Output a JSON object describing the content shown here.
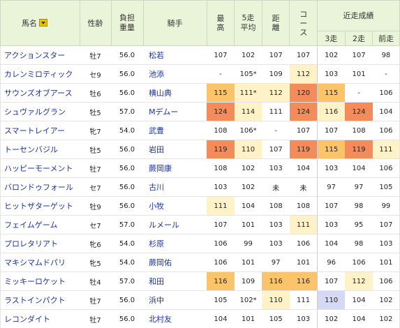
{
  "headers": {
    "name": "馬名",
    "age": "性齢",
    "weight": "負担重量",
    "jockey": "騎手",
    "best": "最高",
    "avg5": "5走平均",
    "dist": "距離",
    "course": "コース",
    "recent": "近走成績",
    "r3": "3走",
    "r2": "2走",
    "r1": "前走"
  },
  "colors": {
    "header_bg": "#eaf4d9",
    "link": "#1a3399",
    "high_light": "#fff2c6",
    "high_mid": "#fbc46b",
    "high_top": "#f38c5a",
    "blue": "#d6d9f5"
  },
  "rows": [
    {
      "name": "アクションスター",
      "age": "牡7",
      "weight": "56.0",
      "jockey": "松若",
      "best": "107",
      "avg5": "102",
      "dist": "107",
      "course": "107",
      "r3": "102",
      "r2": "107",
      "r1": "98"
    },
    {
      "name": "カレンミロティック",
      "age": "セ9",
      "weight": "56.0",
      "jockey": "池添",
      "best": "-",
      "avg5": "105*",
      "dist": "109",
      "course": "112",
      "r3": "103",
      "r2": "101",
      "r1": "-"
    },
    {
      "name": "サウンズオブアース",
      "age": "牡6",
      "weight": "56.0",
      "jockey": "横山典",
      "best": "115",
      "avg5": "111*",
      "dist": "112",
      "course": "120",
      "r3": "115",
      "r2": "-",
      "r1": "106"
    },
    {
      "name": "シュヴァルグラン",
      "age": "牡5",
      "weight": "57.0",
      "jockey": "Mデムー",
      "best": "124",
      "avg5": "114",
      "dist": "111",
      "course": "124",
      "r3": "116",
      "r2": "124",
      "r1": "104"
    },
    {
      "name": "スマートレイアー",
      "age": "牝7",
      "weight": "54.0",
      "jockey": "武豊",
      "best": "108",
      "avg5": "106*",
      "dist": "-",
      "course": "107",
      "r3": "107",
      "r2": "108",
      "r1": "106"
    },
    {
      "name": "トーセンバジル",
      "age": "牡5",
      "weight": "56.0",
      "jockey": "岩田",
      "best": "119",
      "avg5": "110",
      "dist": "107",
      "course": "119",
      "r3": "115",
      "r2": "119",
      "r1": "111"
    },
    {
      "name": "ハッピーモーメント",
      "age": "牡7",
      "weight": "56.0",
      "jockey": "蕨岡康",
      "best": "108",
      "avg5": "102",
      "dist": "103",
      "course": "104",
      "r3": "103",
      "r2": "104",
      "r1": "106"
    },
    {
      "name": "バロンドゥフォール",
      "age": "セ7",
      "weight": "56.0",
      "jockey": "古川",
      "best": "103",
      "avg5": "102",
      "dist": "未",
      "course": "未",
      "r3": "97",
      "r2": "97",
      "r1": "105"
    },
    {
      "name": "ヒットザターゲット",
      "age": "牡9",
      "weight": "56.0",
      "jockey": "小牧",
      "best": "111",
      "avg5": "104",
      "dist": "108",
      "course": "108",
      "r3": "107",
      "r2": "98",
      "r1": "99"
    },
    {
      "name": "フェイムゲーム",
      "age": "セ7",
      "weight": "57.0",
      "jockey": "ルメール",
      "best": "107",
      "avg5": "101",
      "dist": "103",
      "course": "111",
      "r3": "103",
      "r2": "95",
      "r1": "107"
    },
    {
      "name": "プロレタリアト",
      "age": "牝6",
      "weight": "54.0",
      "jockey": "杉原",
      "best": "106",
      "avg5": "99",
      "dist": "103",
      "course": "106",
      "r3": "104",
      "r2": "98",
      "r1": "103"
    },
    {
      "name": "マキシマムドパリ",
      "age": "牝5",
      "weight": "54.0",
      "jockey": "蕨岡佑",
      "best": "106",
      "avg5": "101",
      "dist": "97",
      "course": "101",
      "r3": "96",
      "r2": "106",
      "r1": "101"
    },
    {
      "name": "ミッキーロケット",
      "age": "牡4",
      "weight": "57.0",
      "jockey": "和田",
      "best": "116",
      "avg5": "109",
      "dist": "116",
      "course": "116",
      "r3": "107",
      "r2": "112",
      "r1": "106"
    },
    {
      "name": "ラストインパクト",
      "age": "牡7",
      "weight": "56.0",
      "jockey": "浜中",
      "best": "105",
      "avg5": "102*",
      "dist": "110",
      "course": "111",
      "r3": "110",
      "r2": "104",
      "r1": "102"
    },
    {
      "name": "レコンダイト",
      "age": "牡7",
      "weight": "56.0",
      "jockey": "北村友",
      "best": "104",
      "avg5": "101",
      "dist": "105",
      "course": "103",
      "r3": "102",
      "r2": "104",
      "r1": "102"
    }
  ],
  "highlights": [
    {
      "best": "",
      "avg5": "",
      "dist": "",
      "course": "",
      "r3": "",
      "r2": "",
      "r1": ""
    },
    {
      "best": "",
      "avg5": "",
      "dist": "",
      "course": "hi1",
      "r3": "",
      "r2": "",
      "r1": ""
    },
    {
      "best": "hi2",
      "avg5": "hi1",
      "dist": "hi1",
      "course": "hi3",
      "r3": "hi2",
      "r2": "",
      "r1": ""
    },
    {
      "best": "hi3",
      "avg5": "hi1",
      "dist": "",
      "course": "hi3",
      "r3": "hi1",
      "r2": "hi3",
      "r1": ""
    },
    {
      "best": "",
      "avg5": "",
      "dist": "",
      "course": "",
      "r3": "",
      "r2": "",
      "r1": ""
    },
    {
      "best": "hi3",
      "avg5": "hi1",
      "dist": "",
      "course": "hi3",
      "r3": "hi2",
      "r2": "hi3",
      "r1": "hi1"
    },
    {
      "best": "",
      "avg5": "",
      "dist": "",
      "course": "",
      "r3": "",
      "r2": "",
      "r1": ""
    },
    {
      "best": "",
      "avg5": "",
      "dist": "",
      "course": "",
      "r3": "",
      "r2": "",
      "r1": ""
    },
    {
      "best": "hi1",
      "avg5": "",
      "dist": "",
      "course": "",
      "r3": "",
      "r2": "",
      "r1": ""
    },
    {
      "best": "",
      "avg5": "",
      "dist": "",
      "course": "hi1",
      "r3": "",
      "r2": "",
      "r1": ""
    },
    {
      "best": "",
      "avg5": "",
      "dist": "",
      "course": "",
      "r3": "",
      "r2": "",
      "r1": ""
    },
    {
      "best": "",
      "avg5": "",
      "dist": "",
      "course": "",
      "r3": "",
      "r2": "",
      "r1": ""
    },
    {
      "best": "hi2",
      "avg5": "",
      "dist": "hi2",
      "course": "hi2",
      "r3": "",
      "r2": "hi1",
      "r1": ""
    },
    {
      "best": "",
      "avg5": "",
      "dist": "hi1",
      "course": "",
      "r3": "hiB",
      "r2": "",
      "r1": ""
    },
    {
      "best": "",
      "avg5": "",
      "dist": "",
      "course": "",
      "r3": "",
      "r2": "",
      "r1": ""
    }
  ]
}
